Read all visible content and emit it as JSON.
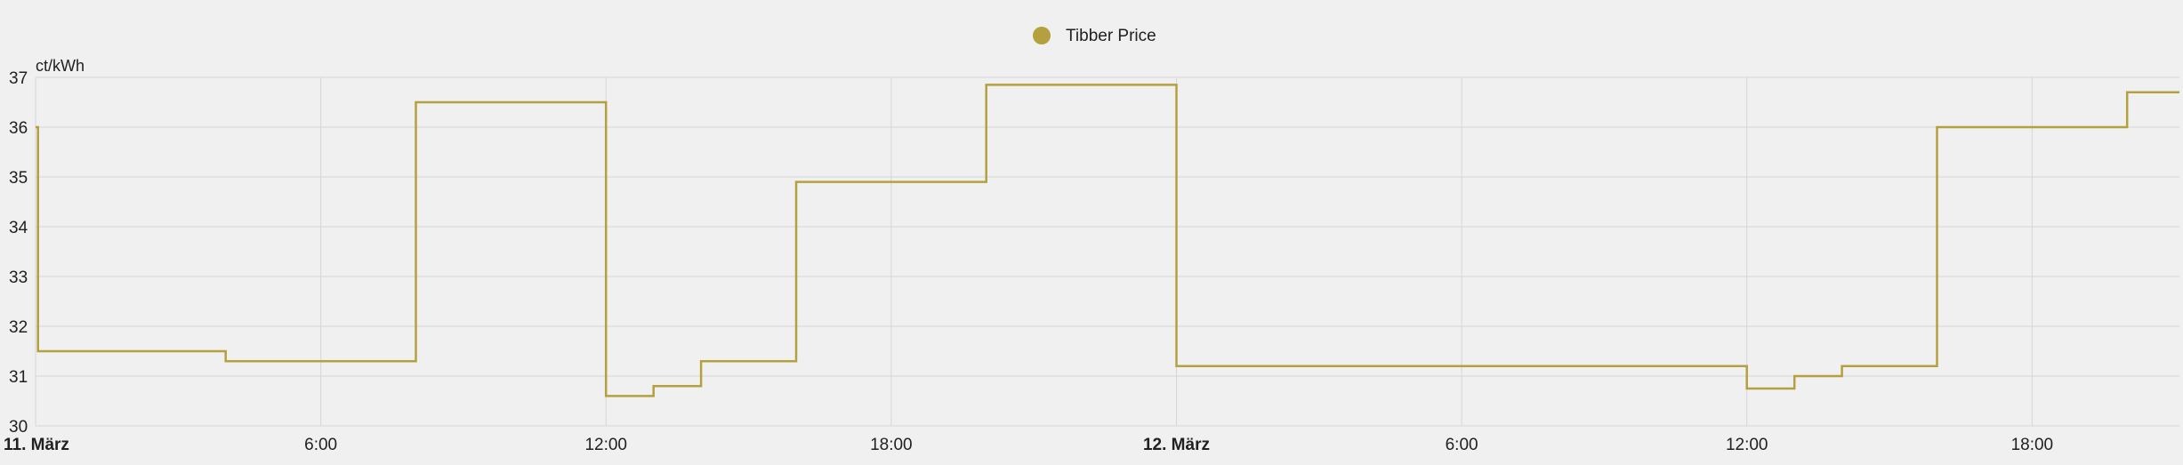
{
  "chart_data": {
    "type": "line",
    "step": true,
    "grid": true,
    "legend_position": "top-center",
    "y_unit": "ct/kWh",
    "ylim": [
      30,
      37
    ],
    "y_ticks": [
      "30",
      "31",
      "32",
      "33",
      "34",
      "35",
      "36",
      "37"
    ],
    "x_range_hours": [
      0,
      45.1
    ],
    "x_ticks": [
      {
        "hour": 0,
        "label": "11. März",
        "major": true
      },
      {
        "hour": 6,
        "label": "6:00",
        "major": false
      },
      {
        "hour": 12,
        "label": "12:00",
        "major": false
      },
      {
        "hour": 18,
        "label": "18:00",
        "major": false
      },
      {
        "hour": 24,
        "label": "12. März",
        "major": true
      },
      {
        "hour": 30,
        "label": "6:00",
        "major": false
      },
      {
        "hour": 36,
        "label": "12:00",
        "major": false
      },
      {
        "hour": 42,
        "label": "18:00",
        "major": false
      }
    ],
    "series": [
      {
        "name": "Tibber Price",
        "color": "#b5a03f",
        "points": [
          {
            "hour": 0.0,
            "value": 36.0
          },
          {
            "hour": 0.05,
            "value": 31.5
          },
          {
            "hour": 4.0,
            "value": 31.3
          },
          {
            "hour": 8.0,
            "value": 36.5
          },
          {
            "hour": 12.0,
            "value": 30.6
          },
          {
            "hour": 13.0,
            "value": 30.8
          },
          {
            "hour": 14.0,
            "value": 31.3
          },
          {
            "hour": 16.0,
            "value": 34.9
          },
          {
            "hour": 20.0,
            "value": 36.85
          },
          {
            "hour": 24.0,
            "value": 31.2
          },
          {
            "hour": 36.0,
            "value": 30.75
          },
          {
            "hour": 37.0,
            "value": 31.0
          },
          {
            "hour": 38.0,
            "value": 31.2
          },
          {
            "hour": 40.0,
            "value": 36.0
          },
          {
            "hour": 44.0,
            "value": 36.7
          },
          {
            "hour": 45.1,
            "value": 36.7
          }
        ]
      }
    ]
  }
}
